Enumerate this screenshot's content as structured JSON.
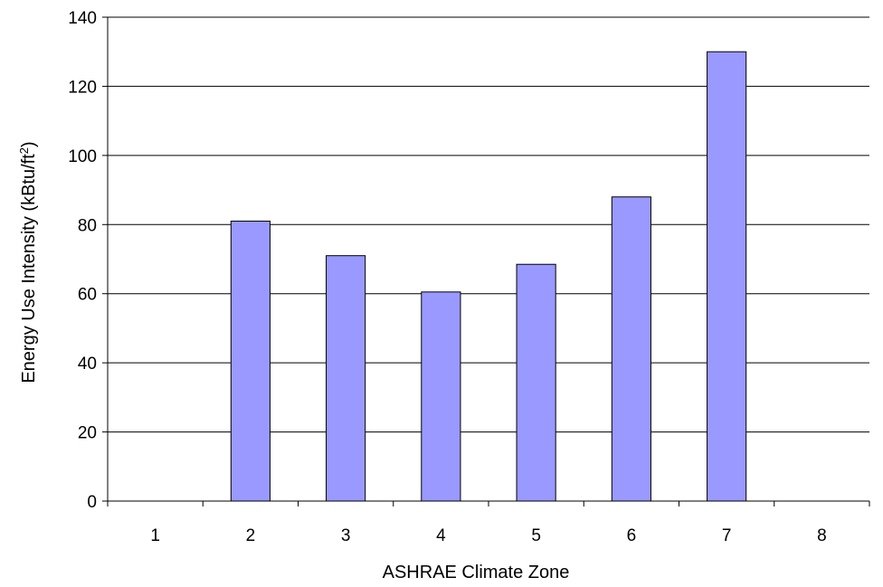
{
  "chart_data": {
    "type": "bar",
    "title": "",
    "xlabel": "ASHRAE Climate Zone",
    "ylabel": {
      "main": "Energy Use Intensity (kBtu/ft",
      "sup": "2",
      "end": ")"
    },
    "categories": [
      "1",
      "2",
      "3",
      "4",
      "5",
      "6",
      "7",
      "8"
    ],
    "values": [
      null,
      81,
      71,
      60.5,
      68.5,
      88,
      130,
      null
    ],
    "ylim": [
      0,
      140
    ],
    "yticks": [
      "0",
      "20",
      "40",
      "60",
      "80",
      "100",
      "120",
      "140"
    ],
    "grid": true,
    "bar_color": "#9999FF",
    "legend": "none"
  }
}
